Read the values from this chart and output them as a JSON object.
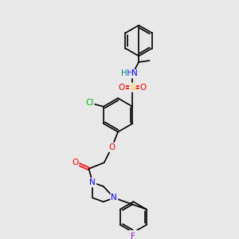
{
  "bg_color": "#e8e8e8",
  "bond_color": "#000000",
  "colors": {
    "N": "#0000FF",
    "O": "#FF0000",
    "S": "#FFD700",
    "Cl": "#00BB00",
    "F": "#9900CC",
    "H": "#008888",
    "C": "#000000"
  },
  "font_size": 7.5,
  "bond_lw": 1.2
}
